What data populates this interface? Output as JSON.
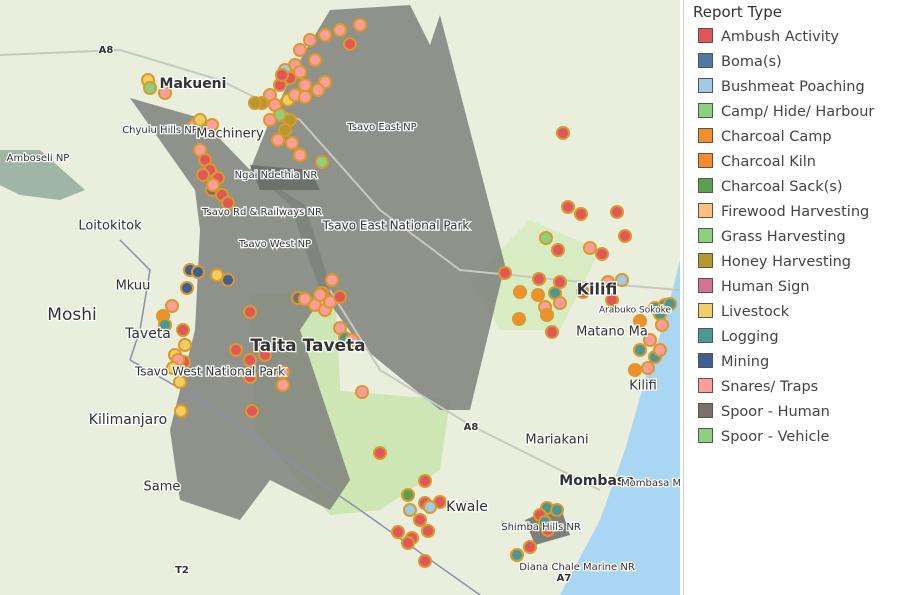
{
  "legend": {
    "title": "Report Type",
    "items": [
      {
        "label": "Ambush Activity",
        "color": "#e15759"
      },
      {
        "label": "Boma(s)",
        "color": "#4e79a7"
      },
      {
        "label": "Bushmeat Poaching",
        "color": "#a0cbe8"
      },
      {
        "label": "Camp/ Hide/ Harbour",
        "color": "#8cd17d"
      },
      {
        "label": "Charcoal Camp",
        "color": "#f28e2b"
      },
      {
        "label": "Charcoal Kiln",
        "color": "#f58a2a"
      },
      {
        "label": "Charcoal Sack(s)",
        "color": "#59a14f"
      },
      {
        "label": "Firewood Harvesting",
        "color": "#ffbe7d"
      },
      {
        "label": "Grass Harvesting",
        "color": "#8cd17d"
      },
      {
        "label": "Honey Harvesting",
        "color": "#b6992d"
      },
      {
        "label": "Human Sign",
        "color": "#d37295"
      },
      {
        "label": "Livestock",
        "color": "#f1ce63"
      },
      {
        "label": "Logging",
        "color": "#499894"
      },
      {
        "label": "Mining",
        "color": "#3d5f94"
      },
      {
        "label": "Snares/ Traps",
        "color": "#ff9d9a"
      },
      {
        "label": "Spoor - Human",
        "color": "#79706e"
      },
      {
        "label": "Spoor - Vehicle",
        "color": "#8cd17d"
      }
    ]
  },
  "map_labels": [
    "Makueni",
    "Chyulu Hills NP",
    "Machinery",
    "Amboseli NP",
    "Ngai Ndethia NR",
    "Tsavo Rd & Railways NR",
    "Tsavo East NP",
    "Tsavo East National Park",
    "Loitokitok",
    "Tsavo West NP",
    "Mkuu",
    "Moshi",
    "Taveta",
    "Taita Taveta",
    "Tsavo West National Park",
    "Kilimanjaro",
    "Same",
    "Kilifi",
    "Arabuko Sokoke",
    "Matano Ma",
    "Kilifi",
    "Mariakani",
    "Mombasa",
    "Mombasa Marine NP",
    "Kwale",
    "Shimba Hills NR",
    "Diana Chale Marine NR",
    "A8",
    "A8",
    "T2",
    "A7"
  ]
}
